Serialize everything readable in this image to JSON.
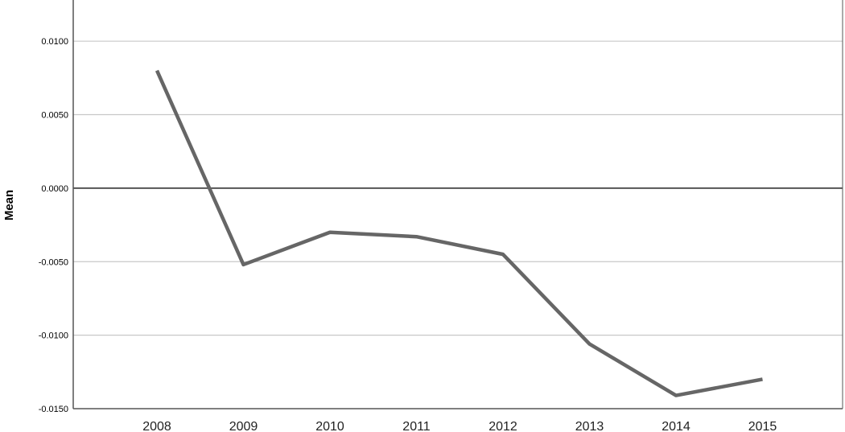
{
  "chart_data": {
    "type": "line",
    "title": "",
    "xlabel": "",
    "ylabel": "Mean",
    "categories": [
      "2008",
      "2009",
      "2010",
      "2011",
      "2012",
      "2013",
      "2014",
      "2015"
    ],
    "series": [
      {
        "values": [
          0.008,
          -0.0052,
          -0.003,
          -0.0033,
          -0.0045,
          -0.0106,
          -0.0141,
          -0.013
        ]
      }
    ],
    "ylim": [
      -0.015,
      0.0128
    ],
    "yticks": [
      0.01,
      0.005,
      0.0,
      -0.005,
      -0.01,
      -0.015
    ],
    "ytick_labels": [
      "0.0100",
      "0.0050",
      "0.0000",
      "-0.0050",
      "-0.0100",
      "-0.0150"
    ],
    "reference_line": 0.0,
    "grid": true,
    "legend": "none",
    "colors": {
      "line": "#666666",
      "grid": "#c8c8c8",
      "axis": "#555555",
      "reference": "#555555"
    }
  }
}
